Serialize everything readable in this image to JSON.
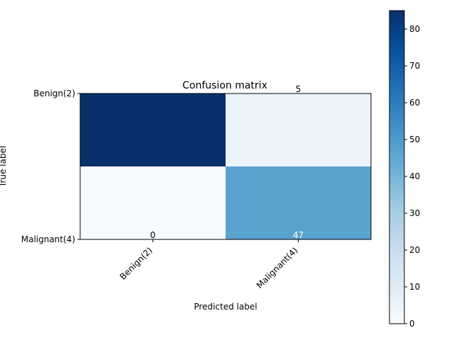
{
  "chart_data": {
    "type": "heatmap",
    "title": "Confusion matrix",
    "xlabel": "Predicted label",
    "ylabel": "True label",
    "x_categories": [
      "Benign(2)",
      "Malignant(4)"
    ],
    "y_categories": [
      "Benign(2)",
      "Malignant(4)"
    ],
    "matrix": [
      [
        85,
        5
      ],
      [
        0,
        47
      ]
    ],
    "cell_labels": [
      {
        "row": 0,
        "col": 1,
        "text": "5",
        "color": "#000000"
      },
      {
        "row": 1,
        "col": 0,
        "text": "0",
        "color": "#000000"
      },
      {
        "row": 1,
        "col": 1,
        "text": "47",
        "color": "#ffffff"
      }
    ],
    "colormap": "Blues",
    "colorbar": {
      "range": [
        0,
        85
      ],
      "ticks": [
        "0",
        "10",
        "20",
        "30",
        "40",
        "50",
        "60",
        "70",
        "80"
      ]
    }
  }
}
